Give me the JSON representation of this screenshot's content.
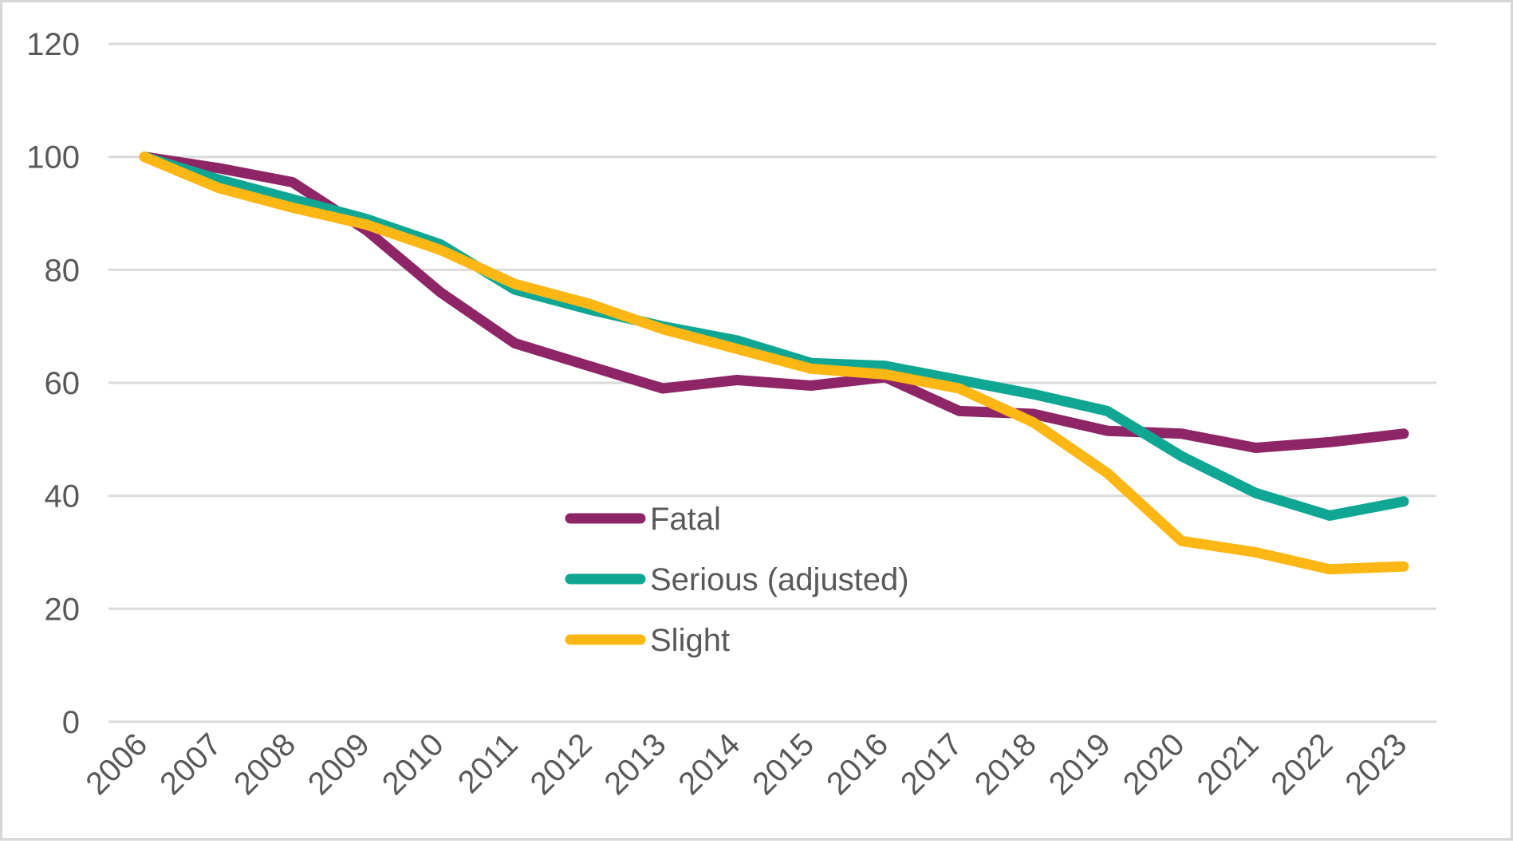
{
  "chart_data": {
    "type": "line",
    "title": "",
    "xlabel": "",
    "ylabel": "",
    "categories": [
      "2006",
      "2007",
      "2008",
      "2009",
      "2010",
      "2011",
      "2012",
      "2013",
      "2014",
      "2015",
      "2016",
      "2017",
      "2018",
      "2019",
      "2020",
      "2021",
      "2022",
      "2023"
    ],
    "series": [
      {
        "name": "Fatal",
        "color": "#8E2566",
        "values": [
          100,
          98,
          95.5,
          87,
          76,
          67,
          63,
          59,
          60.5,
          59.5,
          61,
          55,
          54.5,
          51.5,
          51,
          48.5,
          49.5,
          51
        ]
      },
      {
        "name": "Serious (adjusted)",
        "color": "#0FA793",
        "values": [
          100,
          96,
          92.5,
          89,
          84.5,
          76.5,
          73,
          70,
          67.5,
          63.5,
          63,
          60.5,
          58,
          55,
          47,
          40.5,
          36.5,
          39
        ]
      },
      {
        "name": "Slight",
        "color": "#FDB714",
        "values": [
          100,
          94.5,
          91,
          88,
          83.5,
          77.5,
          74,
          69.5,
          66,
          62.5,
          61.5,
          59,
          53,
          44,
          32,
          30,
          27,
          27.5
        ]
      }
    ],
    "ylim": [
      0,
      120
    ],
    "yticks": [
      0,
      20,
      40,
      60,
      80,
      100,
      120
    ],
    "grid": "horizontal",
    "legend_position": "inside-left-middle",
    "style": {
      "gridline_color": "#DADADA",
      "axis_text_color": "#595959",
      "background": "#FFFFFF",
      "border_color": "#D6D6D6"
    }
  }
}
